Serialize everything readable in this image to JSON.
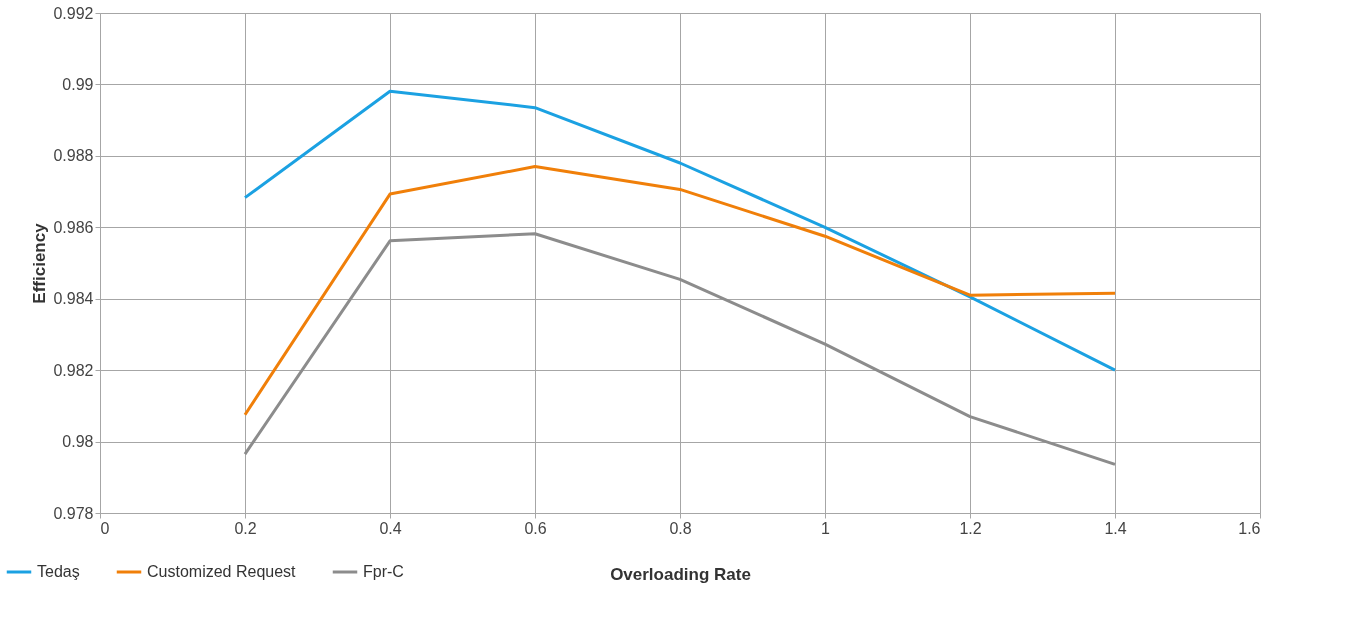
{
  "chart_data": {
    "type": "line",
    "xlabel": "Overloading Rate",
    "ylabel": "Efficiency",
    "x": [
      0.2,
      0.4,
      0.6,
      0.8,
      1,
      1.2,
      1.4
    ],
    "series": [
      {
        "name": "Tedaş",
        "color": "#1ba1e2",
        "values": [
          0.98683,
          0.98981,
          0.98935,
          0.9878,
          0.986,
          0.98405,
          0.982
        ]
      },
      {
        "name": "Customized Request",
        "color": "#f07f09",
        "values": [
          0.98075,
          0.98693,
          0.9877,
          0.98706,
          0.98575,
          0.9841,
          0.98415
        ]
      },
      {
        "name": "Fpr-C",
        "color": "#8c8c8c",
        "values": [
          0.97965,
          0.98562,
          0.98582,
          0.98454,
          0.98273,
          0.9807,
          0.97936
        ]
      }
    ],
    "xlim": [
      0,
      1.6
    ],
    "xticks": [
      0,
      0.2,
      0.4,
      0.6,
      0.8,
      1,
      1.2,
      1.4,
      1.6
    ],
    "ylim": [
      0.978,
      0.992
    ],
    "yticks": [
      0.978,
      0.98,
      0.982,
      0.984,
      0.986,
      0.988,
      0.99,
      0.992
    ],
    "grid": true,
    "legend": "bottom left",
    "marker": "none",
    "line_style": "solid"
  }
}
